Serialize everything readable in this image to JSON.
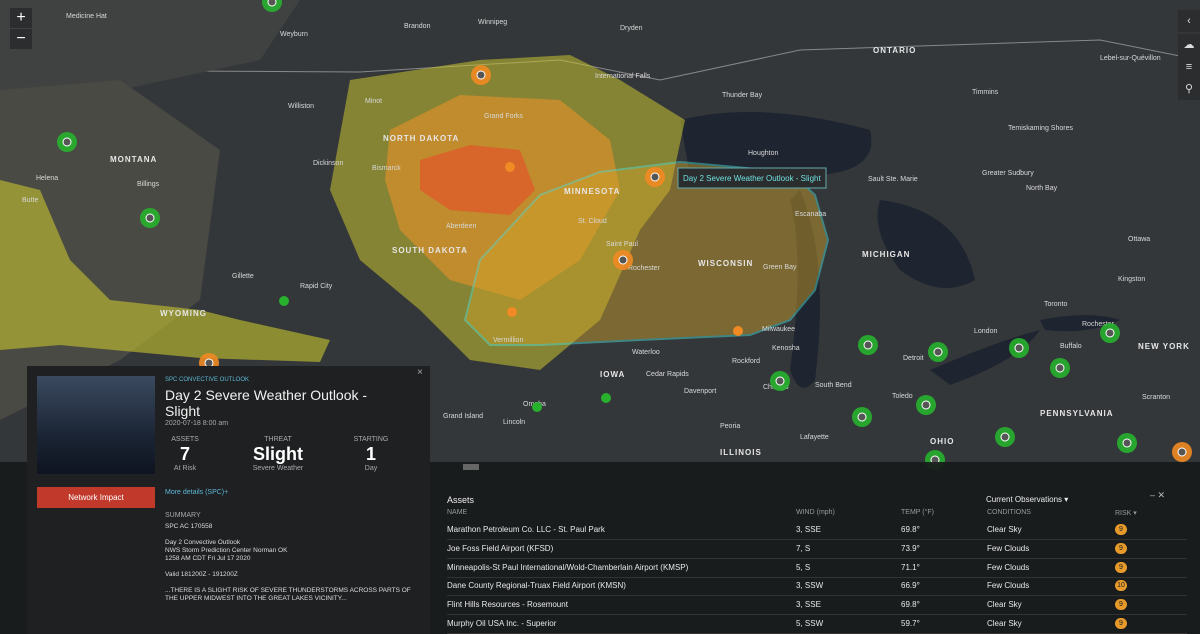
{
  "map": {
    "controls": {
      "zoom_in": "+",
      "zoom_out": "−"
    },
    "tooltip": "Day 2 Severe Weather Outlook - Slight",
    "labels": [
      "Winnipeg",
      "Brandon",
      "Dryden",
      "ONTARIO",
      "Thunder Bay",
      "Timmins",
      "Lebel-sur-Quévillon",
      "NORTH DAKOTA",
      "MONTANA",
      "Grand Forks",
      "Minot",
      "Bismarck",
      "Houghton",
      "Sault Ste. Marie",
      "Greater Sudbury",
      "North Bay",
      "Temiskaming Shores",
      "MINNESOTA",
      "St. Cloud",
      "Saint Paul",
      "SOUTH DAKOTA",
      "WISCONSIN",
      "Green Bay",
      "Aberdeen",
      "Rapid City",
      "Gillette",
      "WYOMING",
      "MICHIGAN",
      "Ottawa",
      "Kingston",
      "Toronto",
      "London",
      "Rochester",
      "Buffalo",
      "NEW YORK",
      "Detroit",
      "IOWA",
      "Cedar Rapids",
      "Davenport",
      "Waterloo",
      "Grand Island",
      "Lincoln",
      "Omaha",
      "Peoria",
      "ILLINOIS",
      "OHIO",
      "PENNSYLVANIA",
      "Chicago",
      "Milwaukee",
      "Rockford",
      "Kenosha",
      "Toledo",
      "Scranton",
      "Lafayette",
      "South Bend",
      "Vermillion",
      "Escanaba",
      "Rochester",
      "International Falls",
      "Williston",
      "Dickinson",
      "Helena",
      "Butte",
      "Billings",
      "Weyburn",
      "Medicine Hat"
    ]
  },
  "panel": {
    "source": "SPC CONVECTIVE OUTLOOK",
    "title": "Day 2 Severe Weather Outlook - Slight",
    "date": "2020-07-18 8:00 am",
    "stats": [
      {
        "label": "ASSETS",
        "value": "7",
        "sub": "At Risk"
      },
      {
        "label": "THREAT",
        "value": "Slight",
        "sub": "Severe Weather"
      },
      {
        "label": "STARTING",
        "value": "1",
        "sub": "Day"
      }
    ],
    "button": "Network Impact",
    "more": "More details (SPC)+",
    "summary_label": "SUMMARY",
    "summary": [
      "SPC AC 170558",
      "",
      "Day 2 Convective Outlook",
      "NWS Storm Prediction Center Norman OK",
      "1258 AM CDT Fri Jul 17 2020",
      "",
      "Valid 181200Z - 191200Z",
      "",
      "...THERE IS A SLIGHT RISK OF SEVERE THUNDERSTORMS ACROSS PARTS OF",
      "THE UPPER MIDWEST INTO THE GREAT LAKES VICINITY..."
    ],
    "close": "×"
  },
  "assets": {
    "title": "Assets",
    "observations": "Current Observations ▾",
    "window": "–  ✕",
    "columns": [
      "NAME",
      "WIND (mph)",
      "TEMP (°F)",
      "CONDITIONS",
      "RISK ▾"
    ],
    "rows": [
      [
        "Marathon Petroleum Co. LLC - St. Paul Park",
        "3, SSE",
        "69.8°",
        "Clear Sky",
        "9"
      ],
      [
        "Joe Foss Field Airport (KFSD)",
        "7, S",
        "73.9°",
        "Few Clouds",
        "9"
      ],
      [
        "Minneapolis-St Paul International/Wold-Chamberlain Airport (KMSP)",
        "5, S",
        "71.1°",
        "Few Clouds",
        "9"
      ],
      [
        "Dane County Regional-Truax Field Airport (KMSN)",
        "3, SSW",
        "66.9°",
        "Few Clouds",
        "10"
      ],
      [
        "Flint Hills Resources - Rosemount",
        "3, SSE",
        "69.8°",
        "Clear Sky",
        "9"
      ],
      [
        "Murphy Oil USA Inc. - Superior",
        "5, SSW",
        "59.7°",
        "Clear Sky",
        "9"
      ]
    ]
  }
}
